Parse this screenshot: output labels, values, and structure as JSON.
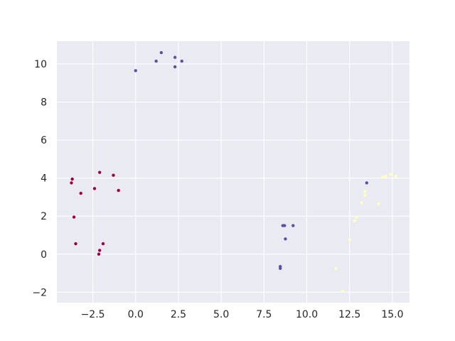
{
  "chart_data": {
    "type": "scatter",
    "title": "",
    "xlabel": "",
    "ylabel": "",
    "xlim": [
      -4.6,
      16.0
    ],
    "ylim": [
      -2.55,
      11.2
    ],
    "xticks": [
      -2.5,
      0.0,
      2.5,
      5.0,
      7.5,
      10.0,
      12.5,
      15.0
    ],
    "xtick_labels": [
      "−2.5",
      "0.0",
      "2.5",
      "5.0",
      "7.5",
      "10.0",
      "12.5",
      "15.0"
    ],
    "yticks": [
      -2,
      0,
      2,
      4,
      6,
      8,
      10
    ],
    "ytick_labels": [
      "−2",
      "0",
      "2",
      "4",
      "6",
      "8",
      "10"
    ],
    "grid": true,
    "legend": "none",
    "colors": {
      "background": "#eaeaf2",
      "grid": "#ffffff"
    },
    "series": [
      {
        "color": "#9e0142",
        "points": [
          [
            -3.7,
            3.95
          ],
          [
            -3.75,
            3.75
          ],
          [
            -3.2,
            3.2
          ],
          [
            -2.4,
            3.45
          ],
          [
            -2.1,
            4.3
          ],
          [
            -1.3,
            4.15
          ],
          [
            -1.0,
            3.35
          ],
          [
            -3.6,
            1.95
          ],
          [
            -3.5,
            0.55
          ],
          [
            -1.9,
            0.55
          ],
          [
            -2.1,
            0.2
          ],
          [
            -2.15,
            0.0
          ]
        ]
      },
      {
        "color": "#5e4fa2",
        "points": [
          [
            0.0,
            9.65
          ],
          [
            1.2,
            10.15
          ],
          [
            1.5,
            10.6
          ],
          [
            2.3,
            10.35
          ],
          [
            2.7,
            10.15
          ],
          [
            2.3,
            9.85
          ],
          [
            8.6,
            1.5
          ],
          [
            8.7,
            1.5
          ],
          [
            9.2,
            1.5
          ],
          [
            8.75,
            0.8
          ],
          [
            8.45,
            -0.65
          ],
          [
            8.45,
            -0.75
          ],
          [
            13.5,
            3.75
          ]
        ]
      },
      {
        "color": "#ffffbf",
        "points": [
          [
            14.4,
            4.05
          ],
          [
            14.6,
            4.1
          ],
          [
            14.9,
            4.2
          ],
          [
            15.2,
            4.1
          ],
          [
            13.4,
            3.3
          ],
          [
            13.4,
            3.1
          ],
          [
            13.2,
            2.7
          ],
          [
            14.2,
            2.65
          ],
          [
            12.9,
            1.95
          ],
          [
            12.8,
            1.75
          ],
          [
            12.5,
            0.75
          ],
          [
            11.7,
            -0.75
          ],
          [
            12.1,
            -1.95
          ]
        ]
      }
    ]
  }
}
